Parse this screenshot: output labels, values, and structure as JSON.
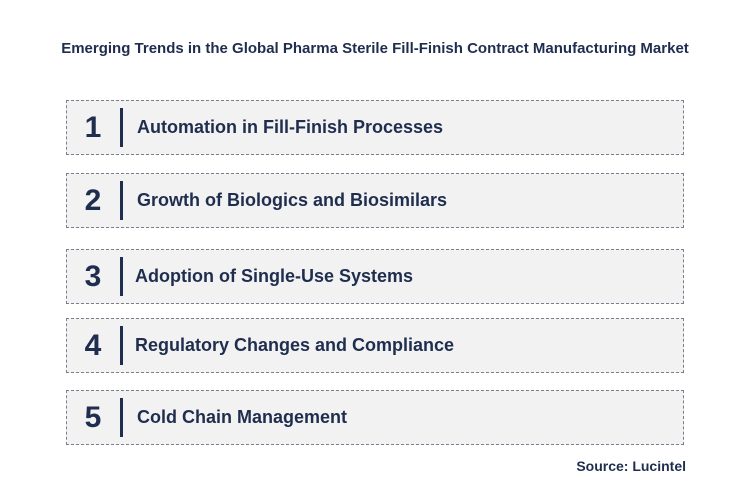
{
  "title": "Emerging Trends in the Global Pharma Sterile Fill-Finish Contract Manufacturing Market",
  "trends": [
    {
      "number": "1",
      "label": "Automation in Fill-Finish Processes"
    },
    {
      "number": "2",
      "label": "Growth of Biologics and Biosimilars"
    },
    {
      "number": "3",
      "label": "Adoption of Single-Use Systems"
    },
    {
      "number": "4",
      "label": "Regulatory Changes and Compliance"
    },
    {
      "number": "5",
      "label": "Cold Chain Management"
    }
  ],
  "source": "Source: Lucintel",
  "colors": {
    "text": "#1f2d4e",
    "box_fill": "#f2f2f2",
    "box_border": "#7a7f8e"
  }
}
